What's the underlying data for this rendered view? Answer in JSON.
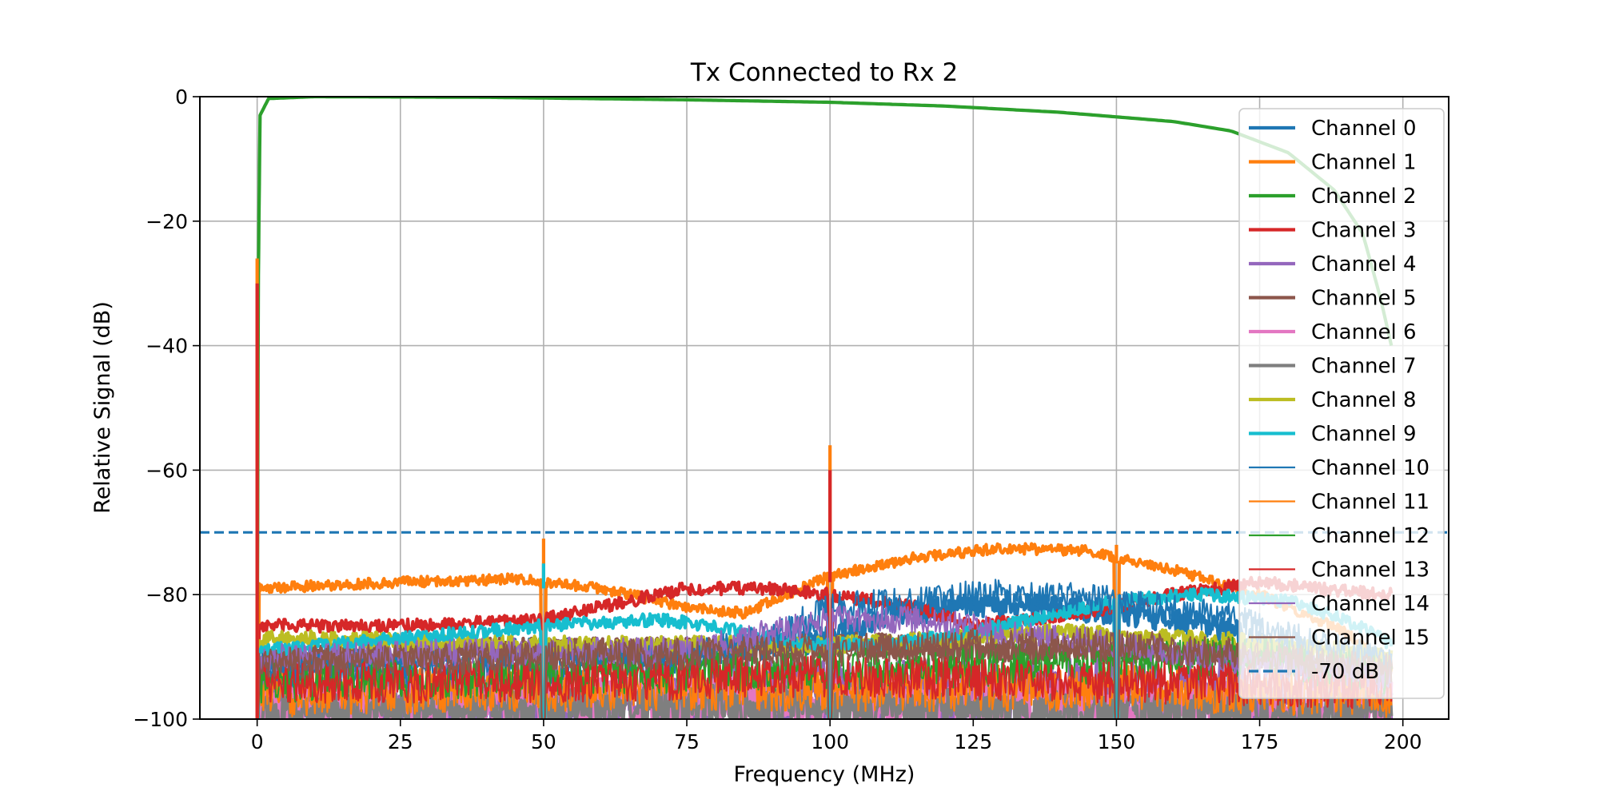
{
  "chart_data": {
    "type": "line",
    "title": "Tx Connected to Rx 2",
    "xlabel": "Frequency (MHz)",
    "ylabel": "Relative Signal (dB)",
    "xlim": [
      -10,
      208
    ],
    "ylim": [
      -100,
      0
    ],
    "x_ticks": [
      0,
      25,
      50,
      75,
      100,
      125,
      150,
      175,
      200
    ],
    "y_ticks": [
      0,
      -20,
      -40,
      -60,
      -80,
      -100
    ],
    "x_tick_labels": [
      "0",
      "25",
      "50",
      "75",
      "100",
      "125",
      "150",
      "175",
      "200"
    ],
    "y_tick_labels": [
      "0",
      "−20",
      "−40",
      "−60",
      "−80",
      "−100"
    ],
    "grid": true,
    "legend_position": "right",
    "x_range": [
      0,
      198
    ],
    "series": [
      {
        "name": "Channel 0",
        "color": "#1f77b4",
        "weight": "thick",
        "noise": 1.2,
        "points": [
          [
            0,
            -91
          ],
          [
            20,
            -90
          ],
          [
            50,
            -89
          ],
          [
            75,
            -90
          ],
          [
            100,
            -87
          ],
          [
            110,
            -83
          ],
          [
            125,
            -82
          ],
          [
            140,
            -82
          ],
          [
            160,
            -84
          ],
          [
            170,
            -86
          ],
          [
            185,
            -92
          ],
          [
            198,
            -95
          ]
        ]
      },
      {
        "name": "Channel 1",
        "color": "#ff7f0e",
        "weight": "thick",
        "noise": 0.5,
        "points": [
          [
            0,
            -79
          ],
          [
            25,
            -78
          ],
          [
            45,
            -77.5
          ],
          [
            60,
            -79
          ],
          [
            75,
            -82
          ],
          [
            85,
            -83
          ],
          [
            100,
            -77
          ],
          [
            115,
            -74
          ],
          [
            130,
            -72.5
          ],
          [
            145,
            -73
          ],
          [
            160,
            -76
          ],
          [
            175,
            -80
          ],
          [
            190,
            -86
          ],
          [
            198,
            -92
          ]
        ]
      },
      {
        "name": "Channel 2",
        "color": "#2ca02c",
        "weight": "thick",
        "noise": 0,
        "points": [
          [
            0,
            -100
          ],
          [
            0.2,
            -30
          ],
          [
            0.5,
            -3
          ],
          [
            2,
            -0.3
          ],
          [
            10,
            0
          ],
          [
            40,
            -0.1
          ],
          [
            75,
            -0.5
          ],
          [
            100,
            -0.9
          ],
          [
            120,
            -1.5
          ],
          [
            140,
            -2.5
          ],
          [
            160,
            -4
          ],
          [
            170,
            -5.5
          ],
          [
            180,
            -9
          ],
          [
            188,
            -15
          ],
          [
            193,
            -22
          ],
          [
            196,
            -32
          ],
          [
            198,
            -40
          ]
        ]
      },
      {
        "name": "Channel 3",
        "color": "#d62728",
        "weight": "thick",
        "noise": 0.6,
        "points": [
          [
            0,
            -85
          ],
          [
            25,
            -85
          ],
          [
            50,
            -84
          ],
          [
            60,
            -82
          ],
          [
            75,
            -79
          ],
          [
            90,
            -79
          ],
          [
            100,
            -80
          ],
          [
            115,
            -82
          ],
          [
            125,
            -85
          ],
          [
            135,
            -84
          ],
          [
            150,
            -82
          ],
          [
            160,
            -80
          ],
          [
            175,
            -78
          ],
          [
            185,
            -79
          ],
          [
            198,
            -80
          ]
        ]
      },
      {
        "name": "Channel 4",
        "color": "#9467bd",
        "weight": "thick",
        "noise": 3.5,
        "points": [
          [
            0,
            -97
          ],
          [
            50,
            -97
          ],
          [
            100,
            -96
          ],
          [
            150,
            -96
          ],
          [
            198,
            -96
          ]
        ]
      },
      {
        "name": "Channel 5",
        "color": "#8c564b",
        "weight": "thick",
        "noise": 1.2,
        "points": [
          [
            0,
            -90
          ],
          [
            25,
            -89
          ],
          [
            50,
            -89
          ],
          [
            75,
            -89
          ],
          [
            100,
            -88
          ],
          [
            125,
            -89
          ],
          [
            150,
            -89
          ],
          [
            175,
            -90
          ],
          [
            198,
            -92
          ]
        ]
      },
      {
        "name": "Channel 6",
        "color": "#e377c2",
        "weight": "thick",
        "noise": 2.5,
        "points": [
          [
            0,
            -98
          ],
          [
            50,
            -97
          ],
          [
            100,
            -97
          ],
          [
            150,
            -98
          ],
          [
            198,
            -98
          ]
        ]
      },
      {
        "name": "Channel 7",
        "color": "#7f7f7f",
        "weight": "thick",
        "noise": 2.0,
        "points": [
          [
            0,
            -99
          ],
          [
            50,
            -98
          ],
          [
            100,
            -98
          ],
          [
            150,
            -99
          ],
          [
            198,
            -99
          ]
        ]
      },
      {
        "name": "Channel 8",
        "color": "#bcbd22",
        "weight": "thick",
        "noise": 0.8,
        "points": [
          [
            0,
            -87
          ],
          [
            50,
            -88
          ],
          [
            75,
            -88
          ],
          [
            100,
            -88
          ],
          [
            125,
            -87
          ],
          [
            140,
            -86
          ],
          [
            160,
            -87
          ],
          [
            180,
            -88
          ],
          [
            198,
            -90
          ]
        ]
      },
      {
        "name": "Channel 9",
        "color": "#17becf",
        "weight": "thick",
        "noise": 0.6,
        "points": [
          [
            0,
            -89
          ],
          [
            25,
            -87
          ],
          [
            50,
            -85
          ],
          [
            70,
            -84
          ],
          [
            80,
            -85
          ],
          [
            95,
            -88
          ],
          [
            110,
            -88
          ],
          [
            125,
            -86
          ],
          [
            140,
            -83
          ],
          [
            150,
            -81
          ],
          [
            165,
            -80
          ],
          [
            180,
            -81
          ],
          [
            190,
            -84
          ],
          [
            198,
            -88
          ]
        ]
      },
      {
        "name": "Channel 10",
        "color": "#1f77b4",
        "weight": "thin",
        "noise": 1.5,
        "points": [
          [
            0,
            -93
          ],
          [
            50,
            -92
          ],
          [
            75,
            -90
          ],
          [
            90,
            -87
          ],
          [
            100,
            -82
          ],
          [
            115,
            -81
          ],
          [
            130,
            -80
          ],
          [
            150,
            -81
          ],
          [
            170,
            -84
          ],
          [
            185,
            -88
          ],
          [
            198,
            -91
          ]
        ]
      },
      {
        "name": "Channel 11",
        "color": "#ff7f0e",
        "weight": "thin",
        "noise": 2.2,
        "points": [
          [
            0,
            -96
          ],
          [
            50,
            -95
          ],
          [
            100,
            -95
          ],
          [
            150,
            -95
          ],
          [
            198,
            -96
          ]
        ]
      },
      {
        "name": "Channel 12",
        "color": "#2ca02c",
        "weight": "thin",
        "noise": 2.0,
        "points": [
          [
            0,
            -94
          ],
          [
            50,
            -93
          ],
          [
            100,
            -92
          ],
          [
            150,
            -91
          ],
          [
            175,
            -90
          ],
          [
            198,
            -93
          ]
        ]
      },
      {
        "name": "Channel 13",
        "color": "#d62728",
        "weight": "thin",
        "noise": 2.0,
        "points": [
          [
            0,
            -94
          ],
          [
            50,
            -94
          ],
          [
            100,
            -93
          ],
          [
            150,
            -94
          ],
          [
            198,
            -95
          ]
        ]
      },
      {
        "name": "Channel 14",
        "color": "#9467bd",
        "weight": "thin",
        "noise": 1.3,
        "points": [
          [
            0,
            -90
          ],
          [
            50,
            -89
          ],
          [
            75,
            -89
          ],
          [
            90,
            -86
          ],
          [
            100,
            -84
          ],
          [
            115,
            -84
          ],
          [
            130,
            -86
          ],
          [
            150,
            -88
          ],
          [
            175,
            -91
          ],
          [
            198,
            -93
          ]
        ]
      },
      {
        "name": "Channel 15",
        "color": "#8c564b",
        "weight": "thin",
        "noise": 1.5,
        "points": [
          [
            0,
            -91
          ],
          [
            50,
            -90
          ],
          [
            100,
            -89
          ],
          [
            125,
            -88
          ],
          [
            150,
            -88
          ],
          [
            175,
            -90
          ],
          [
            198,
            -92
          ]
        ]
      },
      {
        "name": "-70 dB",
        "color": "#1f77b4",
        "weight": "dashed",
        "noise": 0,
        "points": [
          [
            -10,
            -70
          ],
          [
            208,
            -70
          ]
        ]
      }
    ],
    "spikes": [
      {
        "x": 0,
        "top": -26,
        "color": "#ff7f0e"
      },
      {
        "x": 0,
        "top": -30,
        "color": "#d62728"
      },
      {
        "x": 50,
        "top": -71,
        "color": "#ff7f0e"
      },
      {
        "x": 50,
        "top": -75,
        "color": "#17becf"
      },
      {
        "x": 100,
        "top": -56,
        "color": "#ff7f0e"
      },
      {
        "x": 100,
        "top": -60,
        "color": "#d62728"
      },
      {
        "x": 150,
        "top": -72,
        "color": "#ff7f0e"
      },
      {
        "x": 150,
        "top": -75,
        "color": "#17becf"
      }
    ]
  }
}
